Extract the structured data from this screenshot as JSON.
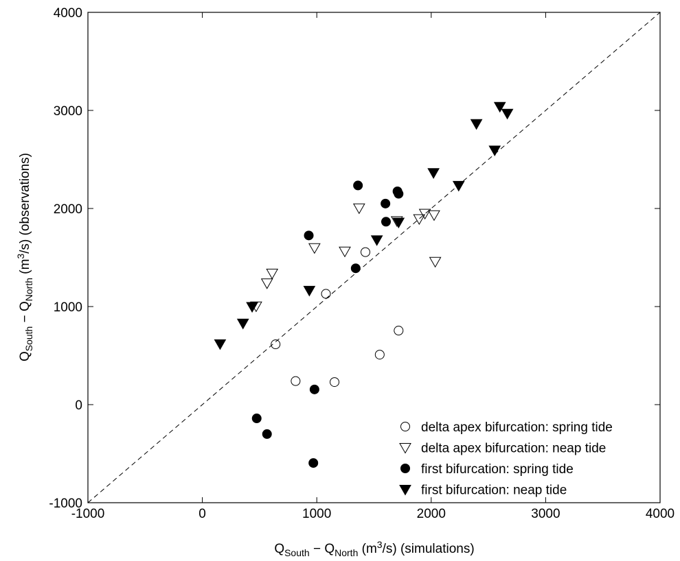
{
  "chart_data": {
    "type": "scatter",
    "xlabel": [
      "Q",
      "South",
      " − Q",
      "North",
      " (m",
      "3",
      "/s) (simulations)"
    ],
    "ylabel": [
      "Q",
      "South",
      " − Q",
      "North",
      " (m",
      "3",
      "/s) (observations)"
    ],
    "xlim": [
      -1000,
      4000
    ],
    "ylim": [
      -1000,
      4000
    ],
    "xticks": [
      -1000,
      0,
      1000,
      2000,
      3000,
      4000
    ],
    "yticks": [
      -1000,
      0,
      1000,
      2000,
      3000,
      4000
    ],
    "series": [
      {
        "name": "delta apex bifurcation: spring tide",
        "color": "#000000",
        "marker": "circle",
        "filled": false,
        "x": [
          640,
          1080,
          1425,
          1715,
          1550,
          815,
          1155
        ],
        "values": [
          615,
          1130,
          1555,
          755,
          510,
          240,
          230
        ]
      },
      {
        "name": "delta apex bifurcation: neap tide",
        "color": "#000000",
        "marker": "triangle-down",
        "filled": false,
        "x": [
          470,
          610,
          565,
          980,
          1245,
          1370,
          1700,
          1895,
          1945,
          2025,
          2035
        ],
        "values": [
          1005,
          1340,
          1240,
          1600,
          1565,
          2005,
          1875,
          1895,
          1950,
          1935,
          1460
        ]
      },
      {
        "name": "first bifurcation: spring tide",
        "color": "#000000",
        "marker": "circle",
        "filled": true,
        "x": [
          930,
          1360,
          1340,
          1600,
          1605,
          1705,
          1715,
          980,
          475,
          565,
          970
        ],
        "values": [
          1725,
          2235,
          1390,
          2050,
          1865,
          2175,
          2150,
          155,
          -140,
          -300,
          -595
        ]
      },
      {
        "name": "first bifurcation: neap tide",
        "color": "#000000",
        "marker": "triangle-down",
        "filled": true,
        "x": [
          155,
          355,
          435,
          935,
          1525,
          1715,
          2020,
          2240,
          2395,
          2555,
          2600,
          2665
        ],
        "values": [
          620,
          830,
          1000,
          1165,
          1680,
          1860,
          2365,
          2235,
          2865,
          2595,
          3040,
          2970
        ]
      }
    ]
  }
}
